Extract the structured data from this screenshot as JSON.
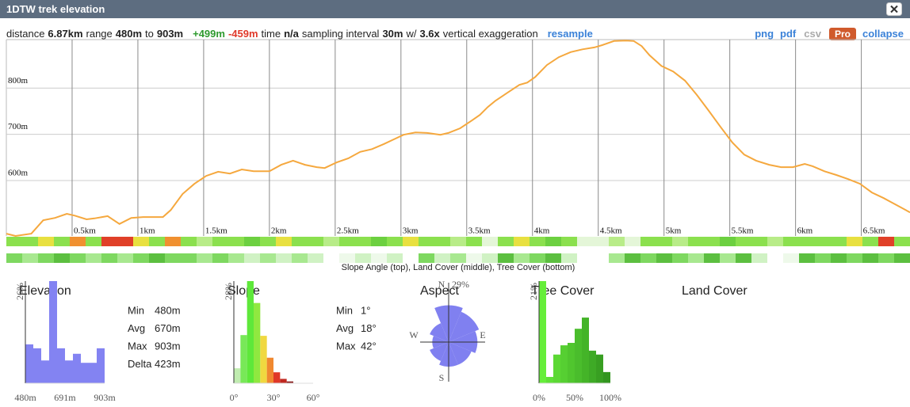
{
  "header": {
    "title": "1DTW trek elevation"
  },
  "toolbar": {
    "segments": [
      {
        "text": "distance",
        "style": "plain"
      },
      {
        "text": "6.87km",
        "style": "bold"
      },
      {
        "text": "range",
        "style": "plain"
      },
      {
        "text": "480m",
        "style": "bold"
      },
      {
        "text": "to",
        "style": "plain"
      },
      {
        "text": "903m",
        "style": "bold"
      },
      {
        "text": "+499m",
        "style": "gain"
      },
      {
        "text": "-459m",
        "style": "loss"
      },
      {
        "text": "time",
        "style": "plain"
      },
      {
        "text": "n/a",
        "style": "bold"
      },
      {
        "text": "sampling interval",
        "style": "plain"
      },
      {
        "text": "30m",
        "style": "bold"
      },
      {
        "text": "w/",
        "style": "plain"
      },
      {
        "text": "3.6x",
        "style": "bold"
      },
      {
        "text": "vertical exaggeration",
        "style": "plain"
      },
      {
        "text": "resample",
        "style": "link"
      }
    ],
    "links": [
      {
        "text": "png",
        "style": "link"
      },
      {
        "text": "pdf",
        "style": "link"
      },
      {
        "text": "csv",
        "style": "disabled"
      },
      {
        "text": "Pro",
        "style": "badge"
      },
      {
        "text": "collapse",
        "style": "link"
      }
    ]
  },
  "strips": {
    "caption": "Slope Angle (top), Land Cover (middle), Tree Cover (bottom)",
    "rows": [
      {
        "colors": [
          "#8be04e",
          "#8be04e",
          "#e8e040",
          "#8be04e",
          "#f09030",
          "#8be04e",
          "#e04028",
          "#e04028",
          "#e8e040",
          "#8be04e",
          "#f09030",
          "#8be04e",
          "#b8ec88",
          "#8be04e",
          "#8be04e",
          "#6cd040",
          "#8be04e",
          "#e8e040",
          "#8be04e",
          "#8be04e",
          "#b8ec88",
          "#8be04e",
          "#8be04e",
          "#6cd040",
          "#8be04e",
          "#e8e040",
          "#8be04e",
          "#8be04e",
          "#b8ec88",
          "#8be04e",
          "#e4f6d8",
          "#8be04e",
          "#e8e040",
          "#8be04e",
          "#6cd040",
          "#8be04e",
          "#e4f6d8",
          "#e4f6d8",
          "#b8ec88",
          "#e4f6d8",
          "#8be04e",
          "#8be04e",
          "#b8ec88",
          "#8be04e",
          "#8be04e",
          "#6cd040",
          "#8be04e",
          "#8be04e",
          "#b8ec88",
          "#8be04e",
          "#8be04e",
          "#8be04e",
          "#8be04e",
          "#e8e040",
          "#8be04e",
          "#e04028",
          "#8be04e"
        ]
      },
      {
        "colors": [
          "#7ed860",
          "#a8e890",
          "#7ed860",
          "#5cbf40",
          "#7ed860",
          "#a8e890",
          "#7ed860",
          "#a8e890",
          "#7ed860",
          "#5cbf40",
          "#7ed860",
          "#7ed860",
          "#a8e890",
          "#7ed860",
          "#a8e890",
          "#d0f2c4",
          "#a8e890",
          "#d0f2c4",
          "#a8e890",
          "#d0f2c4",
          "#ffffff",
          "#eef9ea",
          "#d0f2c4",
          "#eef9ea",
          "#d0f2c4",
          "#ffffff",
          "#7ed860",
          "#d0f2c4",
          "#a8e890",
          "#eef9ea",
          "#d0f2c4",
          "#5cbf40",
          "#a8e890",
          "#7ed860",
          "#5cbf40",
          "#d0f2c4",
          "#ffffff",
          "#ffffff",
          "#a8e890",
          "#5cbf40",
          "#7ed860",
          "#5cbf40",
          "#7ed860",
          "#a8e890",
          "#5cbf40",
          "#a8e890",
          "#5cbf40",
          "#d0f2c4",
          "#ffffff",
          "#eef9ea",
          "#5cbf40",
          "#7ed860",
          "#5cbf40",
          "#7ed860",
          "#5cbf40",
          "#7ed860",
          "#5cbf40"
        ]
      }
    ]
  },
  "chart_data": [
    {
      "type": "line",
      "color": "#f5a83e",
      "grid": true,
      "x": [
        0,
        0.07,
        0.19,
        0.28,
        0.37,
        0.46,
        0.52,
        0.61,
        0.67,
        0.77,
        0.86,
        0.95,
        1.04,
        1.19,
        1.25,
        1.34,
        1.43,
        1.52,
        1.61,
        1.7,
        1.79,
        1.88,
        2.0,
        2.09,
        2.18,
        2.27,
        2.36,
        2.42,
        2.51,
        2.6,
        2.69,
        2.78,
        2.87,
        2.96,
        3.02,
        3.11,
        3.2,
        3.3,
        3.36,
        3.45,
        3.54,
        3.6,
        3.66,
        3.72,
        3.81,
        3.9,
        3.96,
        4.02,
        4.11,
        4.2,
        4.29,
        4.38,
        4.47,
        4.53,
        4.62,
        4.71,
        4.77,
        4.83,
        4.89,
        4.98,
        5.07,
        5.16,
        5.25,
        5.34,
        5.43,
        5.52,
        5.61,
        5.7,
        5.8,
        5.89,
        5.98,
        6.07,
        6.13,
        6.22,
        6.31,
        6.4,
        6.49,
        6.58,
        6.67,
        6.76,
        6.87
      ],
      "values": [
        485,
        480,
        485,
        514,
        519,
        528,
        524,
        516,
        518,
        523,
        506,
        519,
        521,
        521,
        536,
        571,
        593,
        610,
        619,
        615,
        624,
        620,
        620,
        634,
        643,
        634,
        629,
        627,
        639,
        648,
        662,
        668,
        679,
        691,
        699,
        704,
        703,
        699,
        703,
        713,
        730,
        742,
        759,
        773,
        790,
        807,
        812,
        824,
        850,
        867,
        878,
        884,
        888,
        893,
        902,
        903,
        902,
        891,
        871,
        848,
        836,
        816,
        785,
        751,
        716,
        682,
        656,
        643,
        634,
        629,
        629,
        636,
        631,
        620,
        612,
        603,
        593,
        574,
        562,
        548,
        531
      ],
      "xlim": [
        0,
        6.87
      ],
      "ylim": [
        480,
        905
      ],
      "xticks": [
        {
          "value": 0.5,
          "label": "0.5km"
        },
        {
          "value": 1,
          "label": "1km"
        },
        {
          "value": 1.5,
          "label": "1.5km"
        },
        {
          "value": 2,
          "label": "2km"
        },
        {
          "value": 2.5,
          "label": "2.5km"
        },
        {
          "value": 3,
          "label": "3km"
        },
        {
          "value": 3.5,
          "label": "3.5km"
        },
        {
          "value": 4,
          "label": "4km"
        },
        {
          "value": 4.5,
          "label": "4.5km"
        },
        {
          "value": 5,
          "label": "5km"
        },
        {
          "value": 5.5,
          "label": "5.5km"
        },
        {
          "value": 6,
          "label": "6km"
        },
        {
          "value": 6.5,
          "label": "6.5km"
        }
      ],
      "yticks": [
        {
          "value": 600,
          "label": "600m"
        },
        {
          "value": 700,
          "label": "700m"
        },
        {
          "value": 800,
          "label": "800m"
        }
      ]
    },
    {
      "type": "histogram",
      "title": "Elevation",
      "color": "#8383f2",
      "bins": [
        480,
        522.3,
        564.6,
        606.9,
        649.2,
        691.5,
        733.8,
        776.1,
        818.4,
        860.7,
        903
      ],
      "values": [
        9.9,
        8.9,
        5.8,
        26,
        8.9,
        5.8,
        7.5,
        5.2,
        5.2,
        8.9
      ],
      "xlim": [
        480,
        903
      ],
      "ylim": [
        0,
        26
      ],
      "xticks": [
        {
          "value": 480,
          "label": "480m"
        },
        {
          "value": 691,
          "label": "691m"
        },
        {
          "value": 903,
          "label": "903m"
        }
      ],
      "yticks": [
        {
          "value": 26,
          "label": "26%"
        }
      ]
    },
    {
      "type": "histogram",
      "title": "Slope",
      "bins": [
        0,
        5,
        10,
        15,
        20,
        25,
        30,
        35,
        40,
        45
      ],
      "values": [
        4.1,
        13.2,
        28,
        22,
        13,
        7,
        3,
        1.2,
        0.5
      ],
      "colors": [
        "#c0ecb0",
        "#78e858",
        "#5ee83a",
        "#90e840",
        "#f0d840",
        "#f08830",
        "#e03828",
        "#c02820",
        "#8a2020"
      ],
      "xlim": [
        0,
        60
      ],
      "ylim": [
        0,
        28
      ],
      "xticks": [
        {
          "value": 0,
          "label": "0°"
        },
        {
          "value": 30,
          "label": "30°"
        },
        {
          "value": 60,
          "label": "60°"
        }
      ],
      "yticks": [
        {
          "value": 28,
          "label": "28%"
        }
      ]
    },
    {
      "type": "rose",
      "title": "Aspect",
      "color": "#8080f0",
      "categories": [
        "N",
        null,
        "E",
        null,
        "S",
        null,
        "W",
        null
      ],
      "values": [
        18,
        16,
        14,
        12,
        12,
        10,
        8,
        10
      ],
      "rlim": [
        0,
        29
      ],
      "rticks": [
        {
          "value": 29,
          "label": "29%"
        }
      ]
    },
    {
      "type": "histogram",
      "title": "Tree Cover",
      "bins": [
        0,
        10,
        20,
        30,
        40,
        50,
        60,
        70,
        80,
        90,
        100
      ],
      "values": [
        21,
        1.3,
        5.9,
        7.8,
        8.3,
        11.2,
        13.5,
        6.7,
        5.9,
        2.3
      ],
      "colors": [
        "#66ee3a",
        "#5fe036",
        "#5cd834",
        "#56cf32",
        "#50c62e",
        "#4abd2c",
        "#44b428",
        "#3eaa26",
        "#389f22",
        "#32951f"
      ],
      "xlim": [
        0,
        100
      ],
      "ylim": [
        0,
        21
      ],
      "xticks": [
        {
          "value": 0,
          "label": "0%"
        },
        {
          "value": 50,
          "label": "50%"
        },
        {
          "value": 100,
          "label": "100%"
        }
      ],
      "yticks": [
        {
          "value": 21,
          "label": "21%"
        }
      ]
    },
    {
      "type": "empty",
      "title": "Land Cover"
    }
  ],
  "stats": [
    {
      "rows": [
        [
          "Min",
          "480m"
        ],
        [
          "Avg",
          "670m"
        ],
        [
          "Max",
          "903m"
        ],
        [
          "Delta",
          "423m"
        ]
      ]
    },
    {
      "rows": [
        [
          "Min",
          "1°"
        ],
        [
          "Avg",
          "18°"
        ],
        [
          "Max",
          "42°"
        ]
      ]
    }
  ]
}
